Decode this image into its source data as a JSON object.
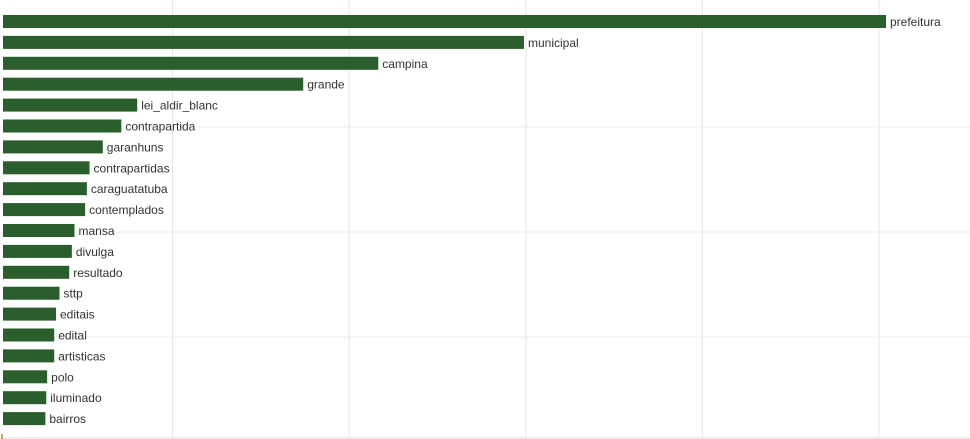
{
  "chart_data": {
    "type": "bar",
    "orientation": "horizontal",
    "bar_color": "#2a5e2c",
    "grid_color": "#e6e6e6",
    "grid": true,
    "xlim": [
      0,
      105
    ],
    "categories": [
      "prefeitura",
      "municipal",
      "campina",
      "grande",
      "lei_aldir_blanc",
      "contrapartida",
      "garanhuns",
      "contrapartidas",
      "caraguatatuba",
      "contemplados",
      "mansa",
      "divulga",
      "resultado",
      "sttp",
      "editais",
      "edital",
      "artisticas",
      "polo",
      "iluminado",
      "bairros"
    ],
    "values": [
      100,
      59,
      42.5,
      34,
      15.2,
      13.4,
      11.3,
      9.8,
      9.5,
      9.3,
      8.1,
      7.8,
      7.5,
      6.4,
      6.0,
      5.8,
      5.8,
      5.0,
      4.9,
      4.8
    ]
  }
}
